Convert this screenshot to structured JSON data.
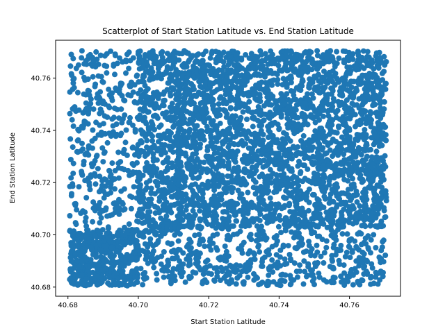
{
  "chart_data": {
    "type": "scatter",
    "title": "Scatterplot of Start Station Latitude vs. End Station Latitude",
    "xlabel": "Start Station Latitude",
    "ylabel": "End Station Latitude",
    "xlim": [
      40.6765,
      40.7745
    ],
    "ylim": [
      40.6765,
      40.7745
    ],
    "xticks": [
      "40.68",
      "40.70",
      "40.72",
      "40.74",
      "40.76"
    ],
    "yticks": [
      "40.68",
      "40.70",
      "40.72",
      "40.74",
      "40.76"
    ],
    "grid": false,
    "legend": "none",
    "marker_color": "#1f77b4",
    "series": [
      {
        "points": [
          [
            40.685,
            40.695
          ],
          [
            40.69,
            40.69
          ],
          [
            40.688,
            40.7
          ],
          [
            40.692,
            40.686
          ],
          [
            40.697,
            40.692
          ],
          [
            40.682,
            40.683
          ],
          [
            40.687,
            40.705
          ],
          [
            40.693,
            40.712
          ],
          [
            40.686,
            40.72
          ],
          [
            40.69,
            40.728
          ],
          [
            40.684,
            40.735
          ],
          [
            40.689,
            40.742
          ],
          [
            40.694,
            40.748
          ],
          [
            40.686,
            40.755
          ],
          [
            40.691,
            40.762
          ],
          [
            40.683,
            40.765
          ],
          [
            40.688,
            40.77
          ],
          [
            40.695,
            40.758
          ],
          [
            40.681,
            40.715
          ],
          [
            40.696,
            40.725
          ],
          [
            40.705,
            40.7
          ],
          [
            40.715,
            40.695
          ],
          [
            40.725,
            40.69
          ],
          [
            40.735,
            40.688
          ],
          [
            40.745,
            40.686
          ],
          [
            40.755,
            40.692
          ],
          [
            40.765,
            40.69
          ],
          [
            40.71,
            40.684
          ],
          [
            40.73,
            40.682
          ],
          [
            40.75,
            40.681
          ],
          [
            40.76,
            40.684
          ],
          [
            40.769,
            40.694
          ],
          [
            40.768,
            40.703
          ],
          [
            40.765,
            40.685
          ],
          [
            40.712,
            40.745
          ],
          [
            40.72,
            40.73
          ],
          [
            40.73,
            40.75
          ],
          [
            40.74,
            40.735
          ],
          [
            40.75,
            40.76
          ],
          [
            40.76,
            40.74
          ],
          [
            40.708,
            40.72
          ],
          [
            40.716,
            40.76
          ],
          [
            40.725,
            40.712
          ],
          [
            40.735,
            40.765
          ],
          [
            40.745,
            40.72
          ],
          [
            40.755,
            40.75
          ],
          [
            40.765,
            40.73
          ],
          [
            40.77,
            40.765
          ],
          [
            40.7,
            40.77
          ],
          [
            40.704,
            40.752
          ]
        ]
      }
    ]
  }
}
